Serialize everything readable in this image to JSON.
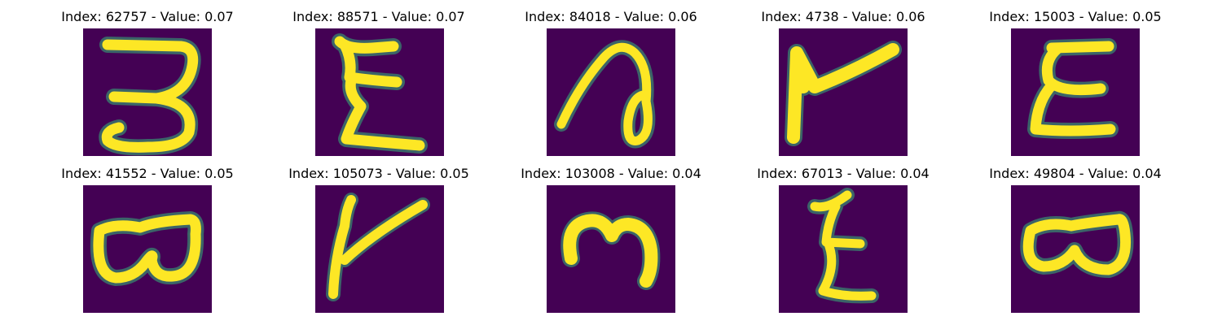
{
  "colors": {
    "background": "#440154",
    "glyph": "#fde725",
    "edge": "#35b779"
  },
  "panels": [
    {
      "title": "Index: 62757 - Value: 0.07",
      "glyph": "digit-three-like-glyph"
    },
    {
      "title": "Index: 88571 - Value: 0.07",
      "glyph": "epsilon-like-glyph"
    },
    {
      "title": "Index: 84018 - Value: 0.06",
      "glyph": "loop-stroke-glyph"
    },
    {
      "title": "Index: 4738 - Value: 0.06",
      "glyph": "flag-like-glyph"
    },
    {
      "title": "Index: 15003 - Value: 0.05",
      "glyph": "epsilon-like-glyph"
    },
    {
      "title": "Index: 41552 - Value: 0.05",
      "glyph": "double-loop-glyph"
    },
    {
      "title": "Index: 105073 - Value: 0.05",
      "glyph": "checkmark-like-glyph"
    },
    {
      "title": "Index: 103008 - Value: 0.04",
      "glyph": "m-like-glyph"
    },
    {
      "title": "Index: 67013 - Value: 0.04",
      "glyph": "z-like-glyph"
    },
    {
      "title": "Index: 49804 - Value: 0.04",
      "glyph": "double-loop-glyph"
    }
  ]
}
